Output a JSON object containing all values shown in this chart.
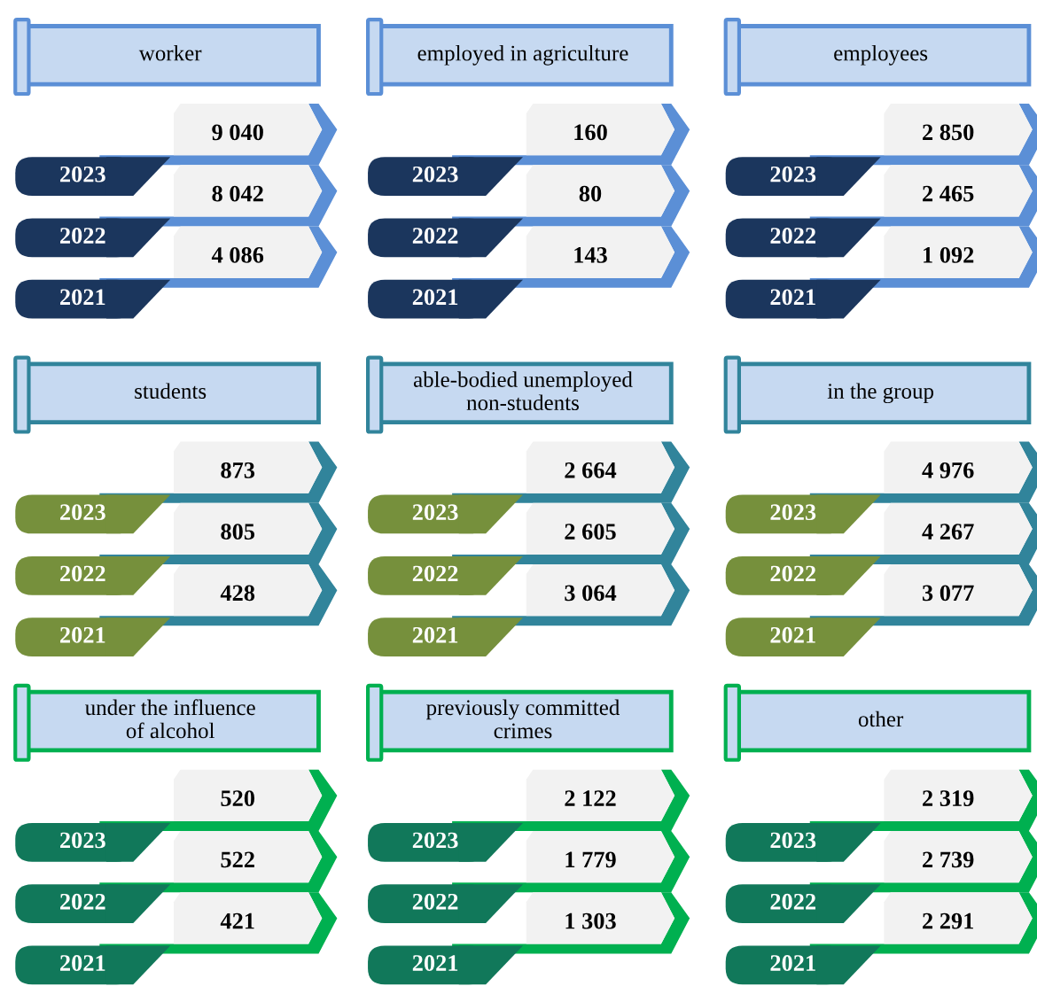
{
  "chart_data": [
    {
      "type": "other",
      "title": "worker",
      "categories": [
        "2023",
        "2022",
        "2021"
      ],
      "values": [
        9040,
        8042,
        4086
      ],
      "data_labels": true,
      "color": "#f2f2f2"
    },
    {
      "type": "other",
      "title": "employed in agriculture",
      "categories": [
        "2023",
        "2022",
        "2021"
      ],
      "values": [
        160,
        80,
        143
      ],
      "data_labels": true,
      "color": "#f2f2f2"
    },
    {
      "type": "other",
      "title": "employees",
      "categories": [
        "2023",
        "2022",
        "2021"
      ],
      "values": [
        2850,
        2465,
        1092
      ],
      "data_labels": true,
      "color": "#f2f2f2"
    },
    {
      "type": "other",
      "title": "students",
      "categories": [
        "2023",
        "2022",
        "2021"
      ],
      "values": [
        873,
        805,
        428
      ],
      "data_labels": true,
      "color": "#f2f2f2"
    },
    {
      "type": "other",
      "title": "able-bodied unemployed\nnon-students",
      "categories": [
        "2023",
        "2022",
        "2021"
      ],
      "values": [
        2664,
        2605,
        3064
      ],
      "data_labels": true,
      "color": "#f2f2f2"
    },
    {
      "type": "other",
      "title": "in the group",
      "categories": [
        "2023",
        "2022",
        "2021"
      ],
      "values": [
        4976,
        4267,
        3077
      ],
      "data_labels": true,
      "color": "#f2f2f2"
    },
    {
      "type": "other",
      "title": "under the influence\nof alcohol",
      "categories": [
        "2023",
        "2022",
        "2021"
      ],
      "values": [
        520,
        522,
        421
      ],
      "data_labels": true,
      "color": "#f2f2f2"
    },
    {
      "type": "other",
      "title": "previously committed\ncrimes",
      "categories": [
        "2023",
        "2022",
        "2021"
      ],
      "values": [
        2122,
        1779,
        1303
      ],
      "data_labels": true,
      "color": "#f2f2f2"
    },
    {
      "type": "other",
      "title": "other",
      "categories": [
        "2023",
        "2022",
        "2021"
      ],
      "values": [
        2319,
        2739,
        2291
      ],
      "data_labels": true,
      "color": "#f2f2f2"
    }
  ]
}
